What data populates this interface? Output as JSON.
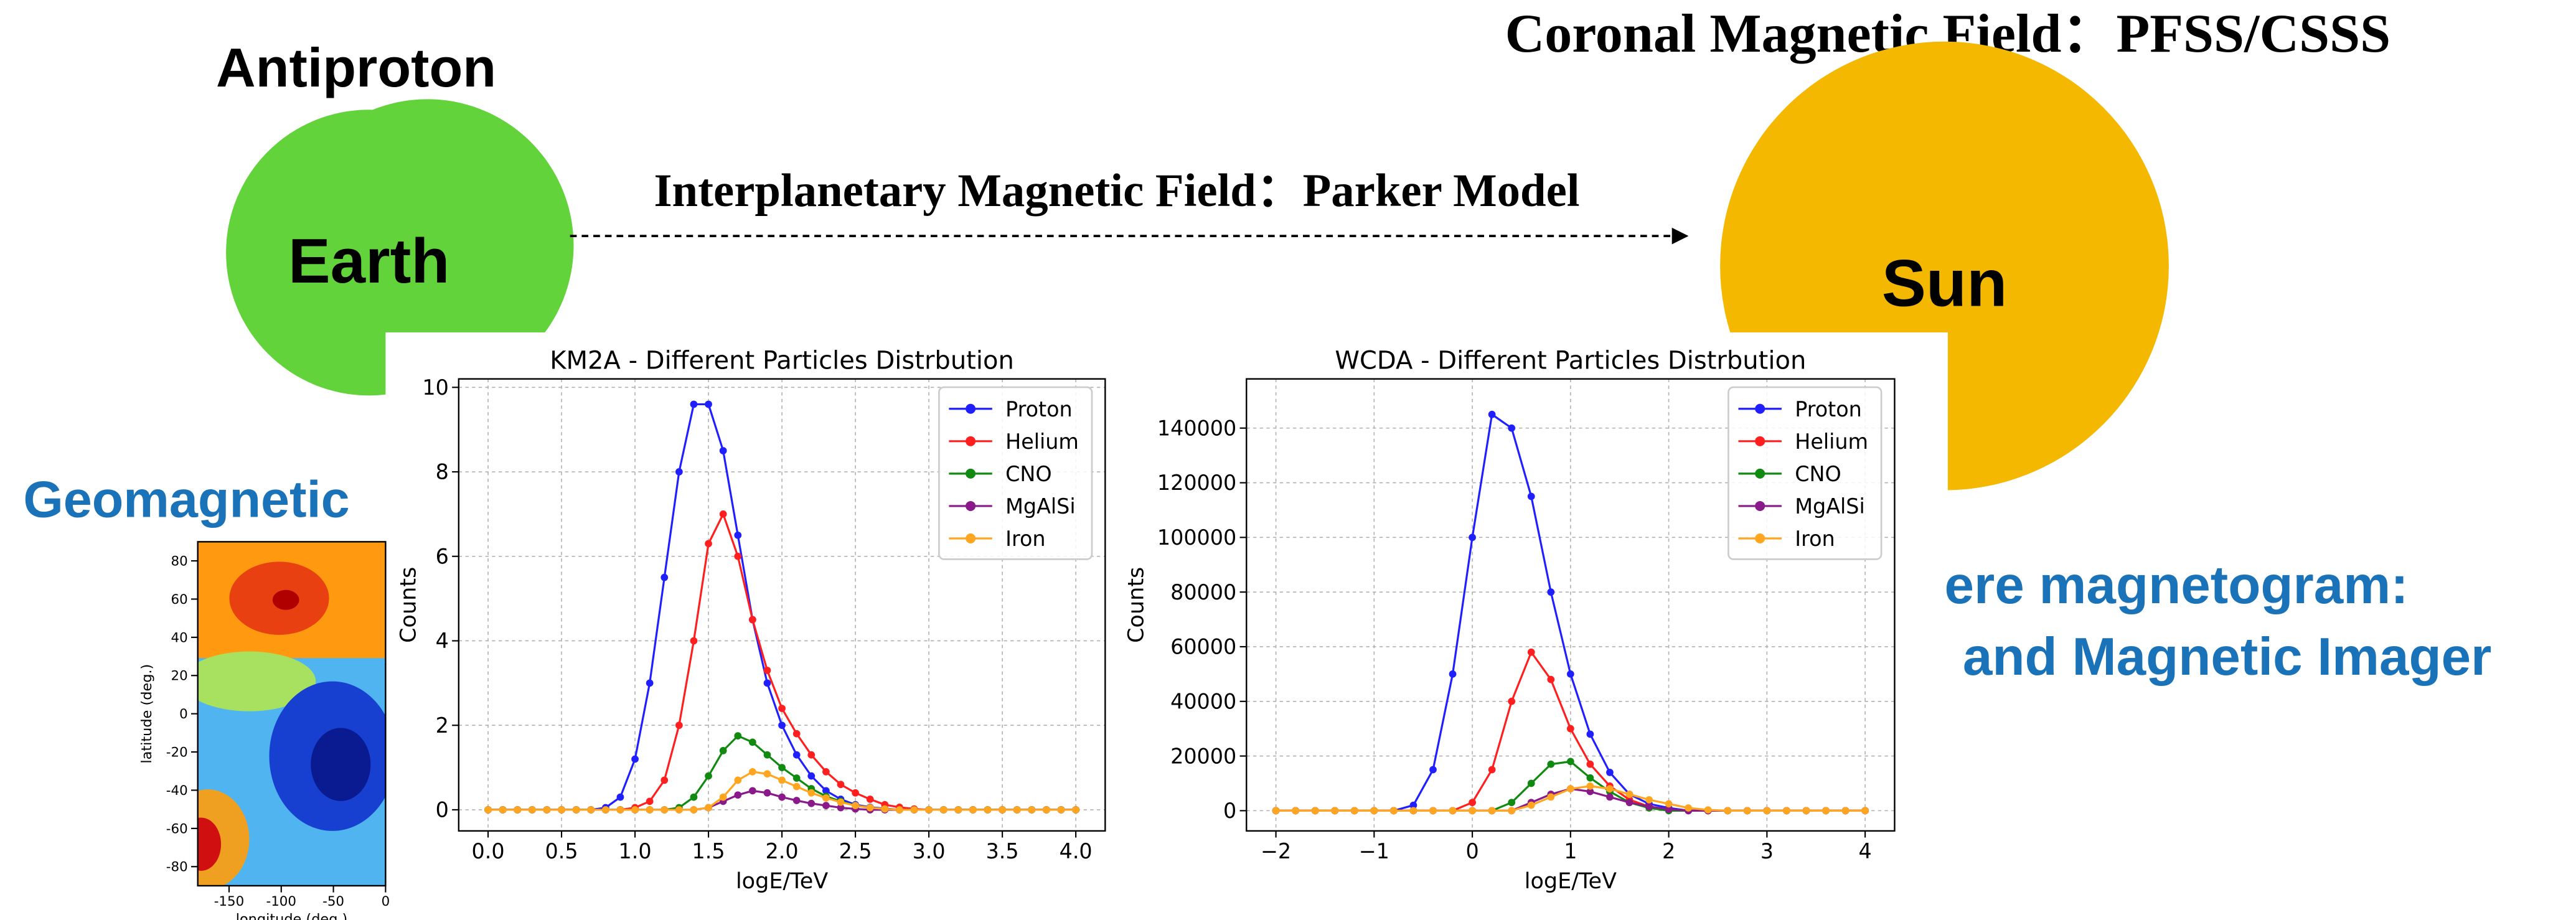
{
  "slide": {
    "antiproton": "Antiproton",
    "earth": "Earth",
    "ipmf": "Interplanetary Magnetic Field：Parker Model",
    "coronal": "Coronal Magnetic Field：PFSS/CSSS",
    "sun": "Sun",
    "geomagnetic": "Geomagnetic",
    "magnetogram_1": "ere magnetogram:",
    "magnetogram_2": "and Magnetic Imager"
  },
  "chart_data": [
    {
      "type": "contour",
      "xlabel": "longitude (deg.)",
      "ylabel": "latitude (deg.)",
      "xlim": [
        -180,
        0
      ],
      "ylim": [
        -90,
        90
      ],
      "xticks": [
        -150,
        -100,
        -50,
        0
      ],
      "yticks": [
        80,
        60,
        40,
        20,
        0,
        -20,
        -40,
        -60,
        -80
      ]
    },
    {
      "type": "line",
      "title": "KM2A - Different Particles Distrbution",
      "xlabel": "logE/TeV",
      "ylabel": "Counts",
      "grid": true,
      "legend": "upper right",
      "xlim": [
        -0.2,
        4.2
      ],
      "ylim": [
        -0.5,
        10.2
      ],
      "xticks": [
        {
          "value": 0,
          "label": "0.0"
        },
        0.5,
        {
          "value": 1,
          "label": "1.0"
        },
        1.5,
        {
          "value": 2,
          "label": "2.0"
        },
        2.5,
        {
          "value": 3,
          "label": "3.0"
        },
        3.5,
        {
          "value": 4,
          "label": "4.0"
        }
      ],
      "yticks": [
        0,
        2,
        4,
        6,
        8,
        10
      ],
      "x": [
        0,
        0.1,
        0.2,
        0.3,
        0.4,
        0.5,
        0.6,
        0.7,
        0.8,
        0.9,
        1,
        1.1,
        1.2,
        1.3,
        1.4,
        1.5,
        1.6,
        1.7,
        1.8,
        1.9,
        2,
        2.1,
        2.2,
        2.3,
        2.4,
        2.5,
        2.6,
        2.7,
        2.8,
        2.9,
        3,
        3.1,
        3.2,
        3.3,
        3.4,
        3.5,
        3.6,
        3.7,
        3.8,
        3.9,
        4
      ],
      "series": [
        {
          "name": "Proton",
          "color": "#1f1fff",
          "values": [
            0,
            0,
            0,
            0,
            0,
            0,
            0,
            0,
            0.05,
            0.3,
            1.2,
            3.0,
            5.5,
            8.0,
            9.6,
            9.6,
            8.5,
            6.5,
            4.5,
            3.0,
            2.0,
            1.3,
            0.8,
            0.45,
            0.25,
            0.12,
            0.06,
            0.03,
            0,
            0,
            0,
            0,
            0,
            0,
            0,
            0,
            0,
            0,
            0,
            0,
            0
          ]
        },
        {
          "name": "Helium",
          "color": "#ff1f1f",
          "values": [
            0,
            0,
            0,
            0,
            0,
            0,
            0,
            0,
            0,
            0,
            0.05,
            0.2,
            0.7,
            2.0,
            4.0,
            6.3,
            7.0,
            6.0,
            4.5,
            3.3,
            2.4,
            1.8,
            1.3,
            0.9,
            0.6,
            0.4,
            0.25,
            0.12,
            0.06,
            0.02,
            0,
            0,
            0,
            0,
            0,
            0,
            0,
            0,
            0,
            0,
            0
          ]
        },
        {
          "name": "CNO",
          "color": "#108a10",
          "values": [
            0,
            0,
            0,
            0,
            0,
            0,
            0,
            0,
            0,
            0,
            0,
            0,
            0,
            0.05,
            0.3,
            0.8,
            1.4,
            1.75,
            1.6,
            1.3,
            1.0,
            0.75,
            0.5,
            0.32,
            0.2,
            0.1,
            0.05,
            0.02,
            0,
            0,
            0,
            0,
            0,
            0,
            0,
            0,
            0,
            0,
            0,
            0,
            0
          ]
        },
        {
          "name": "MgAlSi",
          "color": "#8a1a8a",
          "values": [
            0,
            0,
            0,
            0,
            0,
            0,
            0,
            0,
            0,
            0,
            0,
            0,
            0,
            0,
            0,
            0.05,
            0.2,
            0.35,
            0.45,
            0.4,
            0.3,
            0.22,
            0.15,
            0.1,
            0.05,
            0.02,
            0,
            0,
            0,
            0,
            0,
            0,
            0,
            0,
            0,
            0,
            0,
            0,
            0,
            0,
            0
          ]
        },
        {
          "name": "Iron",
          "color": "#ffa51f",
          "values": [
            0,
            0,
            0,
            0,
            0,
            0,
            0,
            0,
            0,
            0,
            0,
            0,
            0,
            0,
            0,
            0.05,
            0.3,
            0.7,
            0.9,
            0.85,
            0.7,
            0.55,
            0.4,
            0.28,
            0.18,
            0.1,
            0.05,
            0.02,
            0,
            0,
            0,
            0,
            0,
            0,
            0,
            0,
            0,
            0,
            0,
            0,
            0
          ]
        }
      ]
    },
    {
      "type": "line",
      "title": "WCDA - Different Particles Distrbution",
      "xlabel": "logE/TeV",
      "ylabel": "Counts",
      "grid": true,
      "legend": "upper right",
      "xlim": [
        -2.3,
        4.3
      ],
      "ylim": [
        -7400,
        158000
      ],
      "xticks": [
        {
          "value": -2,
          "label": "−2"
        },
        {
          "value": -1,
          "label": "−1"
        },
        0,
        1,
        2,
        3,
        4
      ],
      "yticks": [
        0,
        20000,
        40000,
        60000,
        80000,
        100000,
        120000,
        140000
      ],
      "x": [
        -2,
        -1.8,
        -1.6,
        -1.4,
        -1.2,
        -1,
        -0.8,
        -0.6,
        -0.4,
        -0.2,
        0,
        0.2,
        0.4,
        0.6,
        0.8,
        1,
        1.2,
        1.4,
        1.6,
        1.8,
        2,
        2.2,
        2.4,
        2.6,
        2.8,
        3,
        3.2,
        3.4,
        3.6,
        3.8,
        4
      ],
      "series": [
        {
          "name": "Proton",
          "color": "#1f1fff",
          "values": [
            0,
            0,
            0,
            0,
            0,
            0,
            0,
            2000,
            15000,
            50000,
            100000,
            145000,
            140000,
            115000,
            80000,
            50000,
            28000,
            14000,
            6000,
            2500,
            1000,
            0,
            0,
            0,
            0,
            0,
            0,
            0,
            0,
            0,
            0
          ]
        },
        {
          "name": "Helium",
          "color": "#ff1f1f",
          "values": [
            0,
            0,
            0,
            0,
            0,
            0,
            0,
            0,
            0,
            0,
            3000,
            15000,
            40000,
            58000,
            48000,
            30000,
            17000,
            9000,
            4000,
            1500,
            500,
            0,
            0,
            0,
            0,
            0,
            0,
            0,
            0,
            0,
            0
          ]
        },
        {
          "name": "CNO",
          "color": "#108a10",
          "values": [
            0,
            0,
            0,
            0,
            0,
            0,
            0,
            0,
            0,
            0,
            0,
            0,
            3000,
            10000,
            17000,
            18000,
            12000,
            7000,
            3000,
            1000,
            0,
            0,
            0,
            0,
            0,
            0,
            0,
            0,
            0,
            0,
            0
          ]
        },
        {
          "name": "MgAlSi",
          "color": "#8a1a8a",
          "values": [
            0,
            0,
            0,
            0,
            0,
            0,
            0,
            0,
            0,
            0,
            0,
            0,
            0,
            3000,
            6000,
            8000,
            7000,
            5000,
            3000,
            1500,
            500,
            0,
            0,
            0,
            0,
            0,
            0,
            0,
            0,
            0,
            0
          ]
        },
        {
          "name": "Iron",
          "color": "#ffa51f",
          "values": [
            0,
            0,
            0,
            0,
            0,
            0,
            0,
            0,
            0,
            0,
            0,
            0,
            0,
            2000,
            5000,
            8000,
            9000,
            8000,
            6000,
            4000,
            2500,
            1000,
            300,
            0,
            0,
            0,
            0,
            0,
            0,
            0,
            0
          ]
        }
      ]
    }
  ]
}
